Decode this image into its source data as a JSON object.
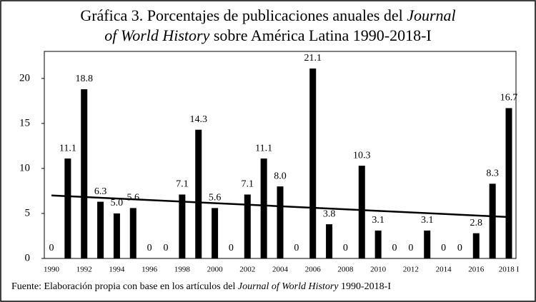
{
  "chart_data": {
    "type": "bar",
    "title_lines": [
      [
        {
          "text": "Gráfica 3. Porcentajes de publicaciones anuales del ",
          "italic": false
        },
        {
          "text": "Journal",
          "italic": true
        }
      ],
      [
        {
          "text": "of World History",
          "italic": true
        },
        {
          "text": " sobre América Latina 1990-2018-I",
          "italic": false
        }
      ]
    ],
    "categories": [
      "1990",
      null,
      "1992",
      null,
      "1994",
      null,
      "1996",
      null,
      "1998",
      null,
      "2000",
      null,
      "2002",
      null,
      "2004",
      null,
      "2006",
      null,
      "2008",
      null,
      "2010",
      null,
      "2012",
      null,
      "2014",
      null,
      "2016",
      null,
      "2018 I"
    ],
    "values": [
      0,
      11.1,
      18.8,
      6.3,
      5.0,
      5.6,
      0,
      0,
      7.1,
      14.3,
      5.6,
      0,
      7.1,
      11.1,
      8.0,
      0,
      21.1,
      3.8,
      0,
      10.3,
      3.1,
      0,
      0,
      3.1,
      0,
      0,
      2.8,
      8.3,
      16.7
    ],
    "value_labels": [
      "0",
      "11.1",
      "18.8",
      "6.3",
      "5.0",
      "5.6",
      "0",
      "0",
      "7.1",
      "14.3",
      "5.6",
      "0",
      "7.1",
      "11.1",
      "8.0",
      "0",
      "21.1",
      "3.8",
      "0",
      "10.3",
      "3.1",
      "0",
      "0",
      "3.1",
      "0",
      "0",
      "2.8",
      "8.3",
      "16.7"
    ],
    "color": "#000000",
    "trendline": {
      "values": [
        7.0,
        4.6
      ],
      "color": "#000000"
    },
    "ylim": [
      0,
      23
    ],
    "yticks": [
      0,
      5,
      10,
      15,
      20
    ],
    "grid": false,
    "source": [
      {
        "text": "Fuente: Elaboración propia con base en los artículos del ",
        "italic": false
      },
      {
        "text": "Journal of World History",
        "italic": true
      },
      {
        "text": " 1990-2018-I",
        "italic": false
      }
    ]
  }
}
